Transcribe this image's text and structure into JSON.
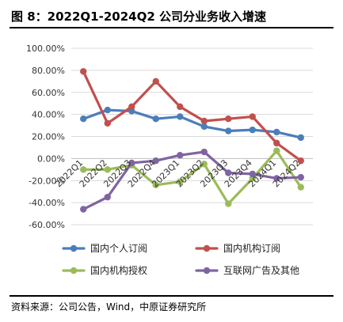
{
  "figure": {
    "title": "图 8：2022Q1-2024Q2 公司分业务收入增速",
    "source": "资料来源：公司公告，Wind，中原证券研究所"
  },
  "chart_data": {
    "type": "line",
    "categories": [
      "2022Q1",
      "2022Q2",
      "2022Q3",
      "2022Q4",
      "2023Q1",
      "2023Q2",
      "2023Q3",
      "2023Q4",
      "2024Q1",
      "2024Q2"
    ],
    "ylim": [
      -0.6,
      1.0
    ],
    "yticks": [
      -0.6,
      -0.4,
      -0.2,
      0.0,
      0.2,
      0.4,
      0.6,
      0.8,
      1.0
    ],
    "ytick_labels": [
      "-60.00%",
      "-40.00%",
      "-20.00%",
      "0.00%",
      "20.00%",
      "40.00%",
      "60.00%",
      "80.00%",
      "100.00%"
    ],
    "grid": true,
    "legend_position": "bottom",
    "series": [
      {
        "name": "国内个人订阅",
        "color": "#4a7ebb",
        "values": [
          0.36,
          0.44,
          0.43,
          0.36,
          0.38,
          0.29,
          0.25,
          0.26,
          0.24,
          0.19
        ]
      },
      {
        "name": "国内机构订阅",
        "color": "#c0504d",
        "values": [
          0.79,
          0.32,
          0.47,
          0.7,
          0.47,
          0.34,
          0.36,
          0.38,
          0.14,
          -0.02
        ]
      },
      {
        "name": "国内机构授权",
        "color": "#9bbb59",
        "values": [
          -0.1,
          -0.1,
          -0.06,
          -0.24,
          -0.21,
          -0.05,
          -0.41,
          -0.18,
          0.07,
          -0.26
        ]
      },
      {
        "name": "互联网广告及其他",
        "color": "#8064a2",
        "values": [
          -0.46,
          -0.35,
          -0.04,
          -0.02,
          0.03,
          0.06,
          -0.13,
          -0.14,
          -0.18,
          -0.17
        ]
      }
    ]
  }
}
